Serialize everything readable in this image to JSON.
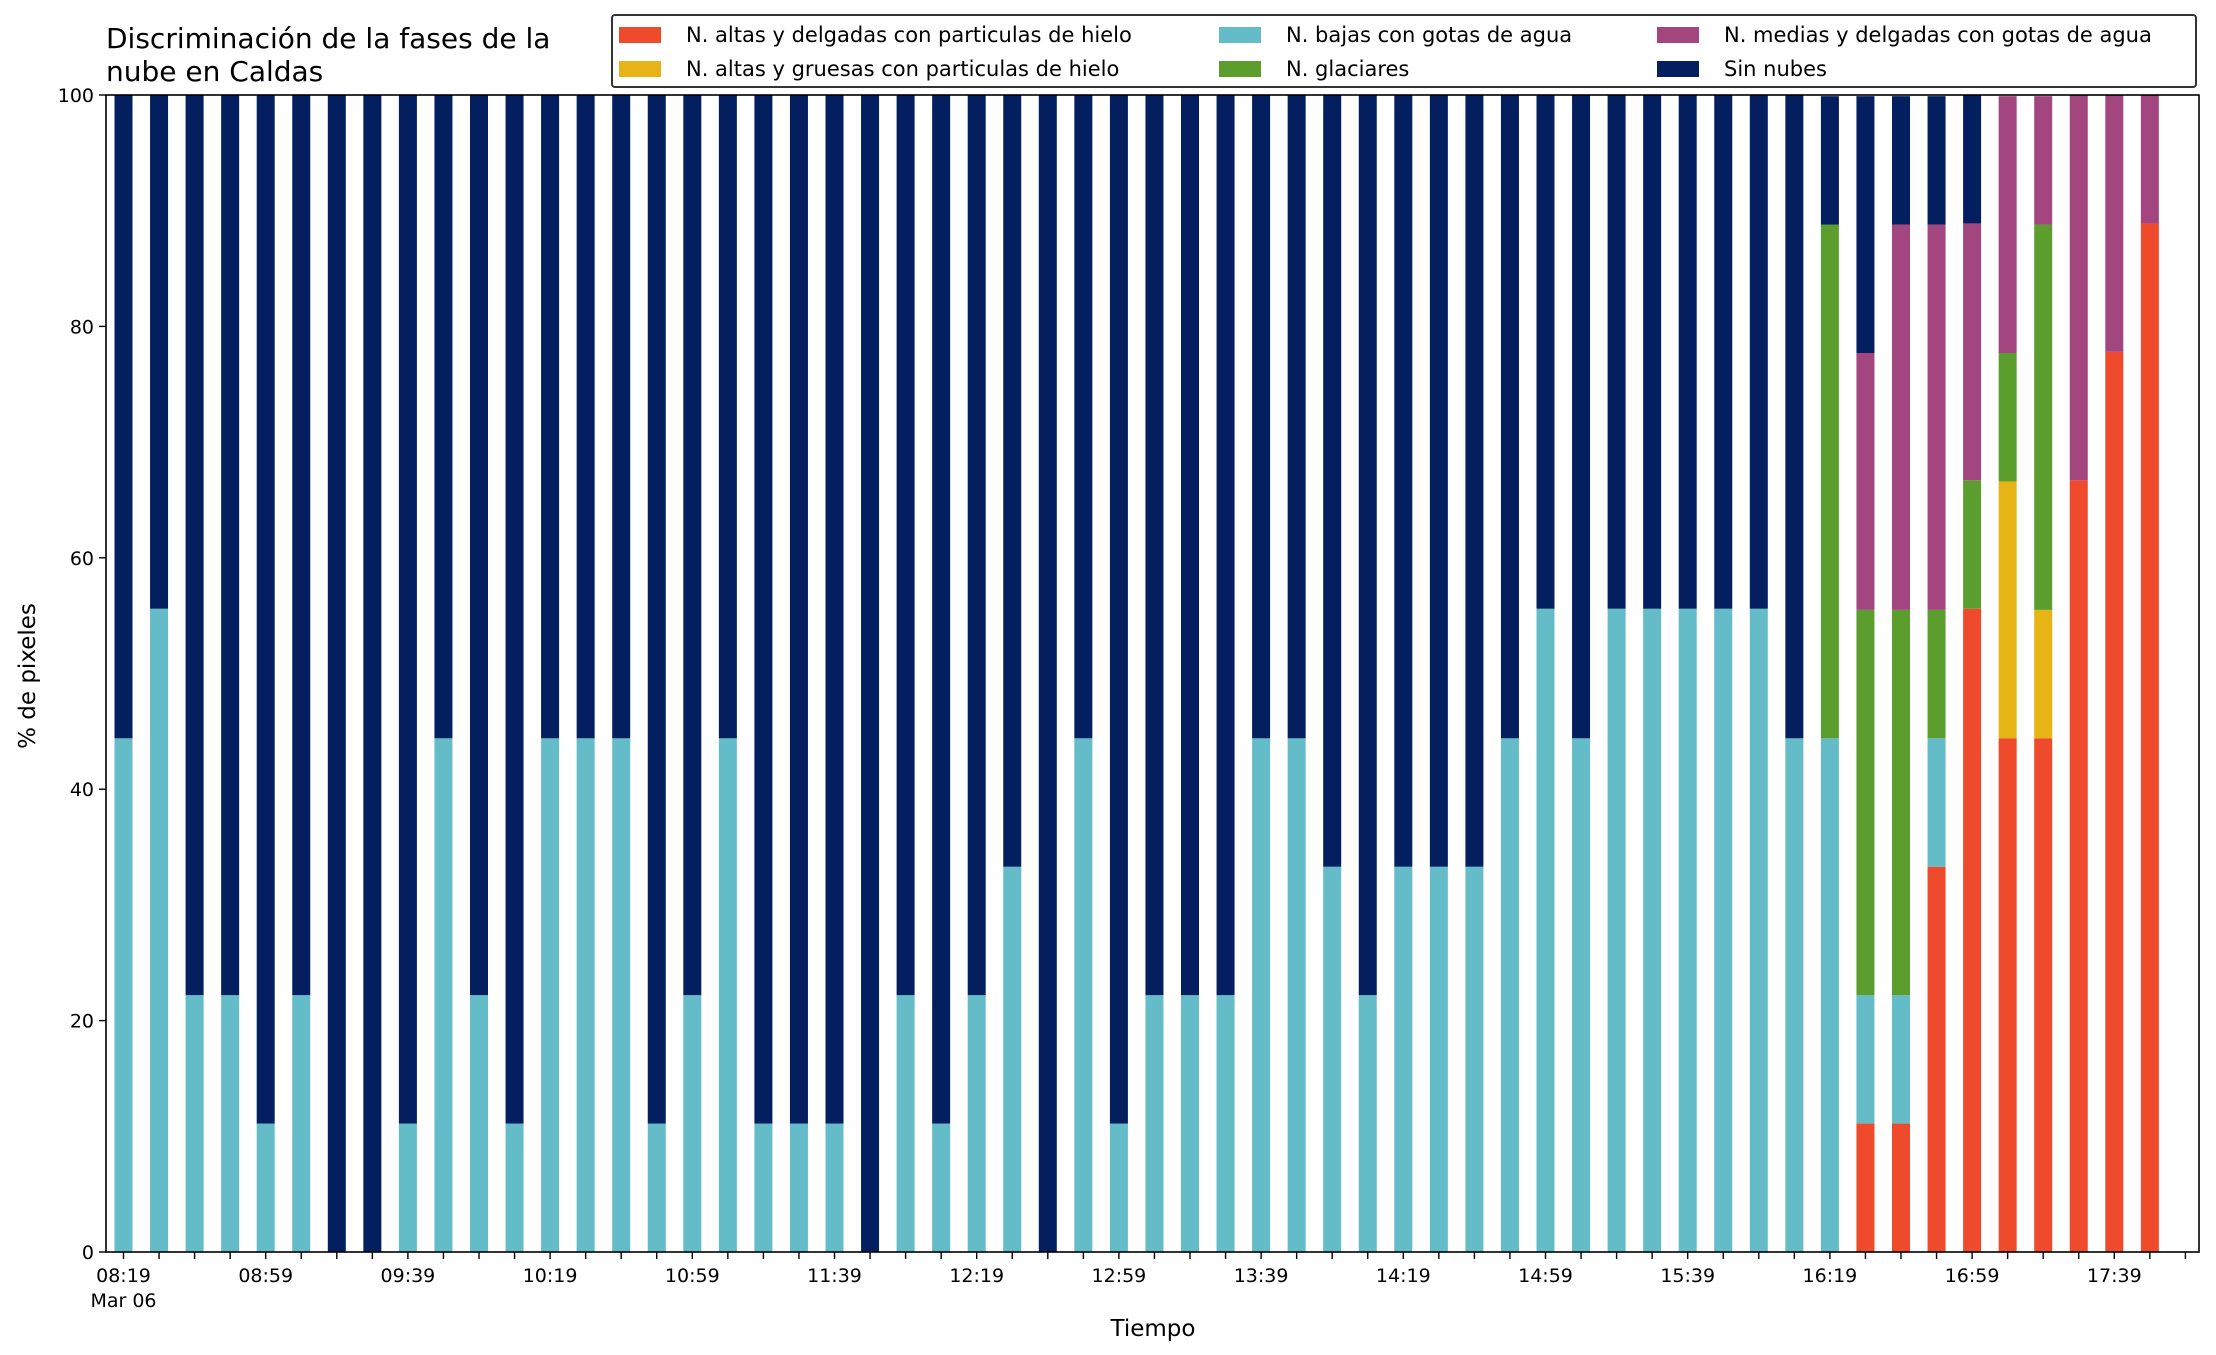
{
  "chart_data": {
    "type": "bar",
    "stacked": true,
    "title": "Discriminación de la fases de la nube en Caldas",
    "title_lines": [
      "Discriminación de la fases de la",
      "nube en Caldas"
    ],
    "xlabel": "Tiempo",
    "ylabel": "% de pixeles",
    "ylim": [
      0,
      100
    ],
    "yticks": [
      "0",
      "20",
      "40",
      "60",
      "80",
      "100"
    ],
    "xtick_labels": [
      "08:19",
      "08:59",
      "09:39",
      "10:19",
      "10:59",
      "11:39",
      "12:19",
      "12:59",
      "13:39",
      "14:19",
      "14:59",
      "15:39",
      "16:19",
      "16:59",
      "17:39"
    ],
    "xtick_sublabel": "Mar 06",
    "grid": false,
    "legend_position": "top-right",
    "legend_columns": 3,
    "categories": [
      "08:19",
      "08:29",
      "08:39",
      "08:49",
      "08:59",
      "09:09",
      "09:19",
      "09:29",
      "09:39",
      "09:49",
      "09:59",
      "10:09",
      "10:19",
      "10:29",
      "10:39",
      "10:49",
      "10:59",
      "11:09",
      "11:19",
      "11:29",
      "11:39",
      "11:49",
      "11:59",
      "12:09",
      "12:19",
      "12:29",
      "12:39",
      "12:49",
      "12:59",
      "13:09",
      "13:19",
      "13:29",
      "13:39",
      "13:49",
      "13:59",
      "14:09",
      "14:19",
      "14:29",
      "14:39",
      "14:49",
      "14:59",
      "15:09",
      "15:19",
      "15:29",
      "15:39",
      "15:49",
      "15:59",
      "16:09",
      "16:19",
      "16:29",
      "16:39",
      "16:49",
      "16:59",
      "17:09",
      "17:19",
      "17:29",
      "17:39",
      "17:49"
    ],
    "series": [
      {
        "name": "N. altas y delgadas con particulas de hielo",
        "color": "#ef4a2b",
        "values": [
          0,
          0,
          0,
          0,
          0,
          0,
          0,
          0,
          0,
          0,
          0,
          0,
          0,
          0,
          0,
          0,
          0,
          0,
          0,
          0,
          0,
          0,
          0,
          0,
          0,
          0,
          0,
          0,
          0,
          0,
          0,
          0,
          0,
          0,
          0,
          0,
          0,
          0,
          0,
          0,
          0,
          0,
          0,
          0,
          0,
          0,
          0,
          0,
          0,
          11.1,
          11.1,
          33.3,
          55.6,
          44.4,
          44.4,
          66.7,
          77.8,
          88.9
        ]
      },
      {
        "name": "N. altas y gruesas con particulas de hielo",
        "color": "#e7b416",
        "values": [
          0,
          0,
          0,
          0,
          0,
          0,
          0,
          0,
          0,
          0,
          0,
          0,
          0,
          0,
          0,
          0,
          0,
          0,
          0,
          0,
          0,
          0,
          0,
          0,
          0,
          0,
          0,
          0,
          0,
          0,
          0,
          0,
          0,
          0,
          0,
          0,
          0,
          0,
          0,
          0,
          0,
          0,
          0,
          0,
          0,
          0,
          0,
          0,
          0,
          0,
          0,
          0,
          0,
          22.2,
          11.1,
          0,
          0,
          0
        ]
      },
      {
        "name": "N. bajas con gotas de agua",
        "color": "#64bcc8",
        "values": [
          44.4,
          55.6,
          22.2,
          22.2,
          11.1,
          22.2,
          0,
          0,
          11.1,
          44.4,
          22.2,
          11.1,
          44.4,
          44.4,
          44.4,
          11.1,
          22.2,
          44.4,
          11.1,
          11.1,
          11.1,
          0,
          22.2,
          11.1,
          22.2,
          33.3,
          0,
          44.4,
          11.1,
          22.2,
          22.2,
          22.2,
          44.4,
          44.4,
          33.3,
          22.2,
          33.3,
          33.3,
          33.3,
          44.4,
          55.6,
          44.4,
          55.6,
          55.6,
          55.6,
          55.6,
          55.6,
          44.4,
          44.4,
          11.1,
          11.1,
          11.1,
          0,
          0,
          0,
          0,
          0,
          0
        ]
      },
      {
        "name": "N. glaciares",
        "color": "#5c9e2d",
        "values": [
          0,
          0,
          0,
          0,
          0,
          0,
          0,
          0,
          0,
          0,
          0,
          0,
          0,
          0,
          0,
          0,
          0,
          0,
          0,
          0,
          0,
          0,
          0,
          0,
          0,
          0,
          0,
          0,
          0,
          0,
          0,
          0,
          0,
          0,
          0,
          0,
          0,
          0,
          0,
          0,
          0,
          0,
          0,
          0,
          0,
          0,
          0,
          0,
          44.4,
          33.3,
          33.3,
          11.1,
          11.1,
          11.1,
          33.3,
          0,
          0,
          0
        ]
      },
      {
        "name": "N. medias y delgadas con gotas de agua",
        "color": "#a3457e",
        "values": [
          0,
          0,
          0,
          0,
          0,
          0,
          0,
          0,
          0,
          0,
          0,
          0,
          0,
          0,
          0,
          0,
          0,
          0,
          0,
          0,
          0,
          0,
          0,
          0,
          0,
          0,
          0,
          0,
          0,
          0,
          0,
          0,
          0,
          0,
          0,
          0,
          0,
          0,
          0,
          0,
          0,
          0,
          0,
          0,
          0,
          0,
          0,
          0,
          0,
          22.2,
          33.3,
          33.3,
          22.2,
          22.2,
          11.1,
          33.3,
          22.2,
          11.1
        ]
      },
      {
        "name": "Sin nubes",
        "color": "#031f5f",
        "values": [
          55.6,
          44.4,
          77.8,
          77.8,
          88.9,
          77.8,
          100,
          100,
          88.9,
          55.6,
          77.8,
          88.9,
          55.6,
          55.6,
          55.6,
          88.9,
          77.8,
          55.6,
          88.9,
          88.9,
          88.9,
          100,
          77.8,
          88.9,
          77.8,
          66.7,
          100,
          55.6,
          88.9,
          77.8,
          77.8,
          77.8,
          55.6,
          55.6,
          66.7,
          77.8,
          66.7,
          66.7,
          66.7,
          55.6,
          44.4,
          55.6,
          44.4,
          44.4,
          44.4,
          44.4,
          44.4,
          55.6,
          11.1,
          22.2,
          11.1,
          11.1,
          11.1,
          0,
          0,
          0,
          0,
          0
        ]
      }
    ]
  }
}
